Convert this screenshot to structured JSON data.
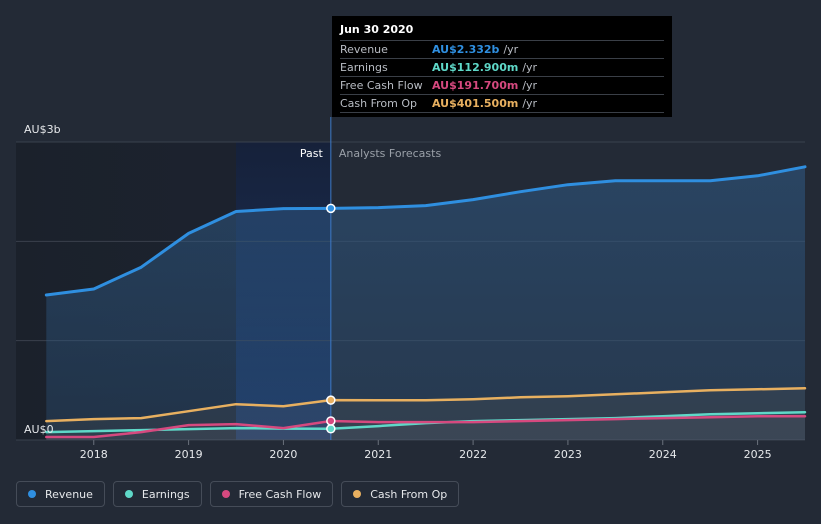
{
  "chart_data": {
    "type": "line",
    "title": "",
    "xlabel": "",
    "ylabel": "",
    "y_axis_top_label": "AU$3b",
    "y_axis_bottom_label": "AU$0",
    "ylim": [
      0,
      3.0
    ],
    "xlim": [
      2017.5,
      2025.5
    ],
    "x_ticks": [
      "2018",
      "2019",
      "2020",
      "2021",
      "2022",
      "2023",
      "2024",
      "2025"
    ],
    "past_label": "Past",
    "forecast_label": "Analysts Forecasts",
    "divider_x": 2020.5,
    "highlight_start_x": 2019.5,
    "series": [
      {
        "name": "Revenue",
        "color": "#2f8fe0",
        "area": true,
        "points": [
          [
            2017.5,
            1.46
          ],
          [
            2018.0,
            1.52
          ],
          [
            2018.5,
            1.74
          ],
          [
            2019.0,
            2.08
          ],
          [
            2019.5,
            2.3
          ],
          [
            2020.0,
            2.33
          ],
          [
            2020.5,
            2.332
          ],
          [
            2021.0,
            2.34
          ],
          [
            2021.5,
            2.36
          ],
          [
            2022.0,
            2.42
          ],
          [
            2022.5,
            2.5
          ],
          [
            2023.0,
            2.57
          ],
          [
            2023.5,
            2.61
          ],
          [
            2024.0,
            2.61
          ],
          [
            2024.5,
            2.61
          ],
          [
            2025.0,
            2.66
          ],
          [
            2025.5,
            2.75
          ]
        ]
      },
      {
        "name": "Earnings",
        "color": "#5fd8c8",
        "area": false,
        "points": [
          [
            2017.5,
            0.08
          ],
          [
            2018.0,
            0.09
          ],
          [
            2018.5,
            0.1
          ],
          [
            2019.0,
            0.11
          ],
          [
            2019.5,
            0.12
          ],
          [
            2020.0,
            0.115
          ],
          [
            2020.5,
            0.1129
          ],
          [
            2021.0,
            0.14
          ],
          [
            2021.5,
            0.17
          ],
          [
            2022.0,
            0.19
          ],
          [
            2022.5,
            0.2
          ],
          [
            2023.0,
            0.21
          ],
          [
            2023.5,
            0.22
          ],
          [
            2024.0,
            0.24
          ],
          [
            2024.5,
            0.26
          ],
          [
            2025.0,
            0.27
          ],
          [
            2025.5,
            0.28
          ]
        ]
      },
      {
        "name": "Free Cash Flow",
        "color": "#d6497f",
        "area": false,
        "points": [
          [
            2017.5,
            0.03
          ],
          [
            2018.0,
            0.03
          ],
          [
            2018.5,
            0.08
          ],
          [
            2019.0,
            0.15
          ],
          [
            2019.5,
            0.16
          ],
          [
            2020.0,
            0.12
          ],
          [
            2020.5,
            0.1917
          ],
          [
            2021.0,
            0.18
          ],
          [
            2021.5,
            0.18
          ],
          [
            2022.0,
            0.18
          ],
          [
            2022.5,
            0.19
          ],
          [
            2023.0,
            0.2
          ],
          [
            2023.5,
            0.21
          ],
          [
            2024.0,
            0.22
          ],
          [
            2024.5,
            0.23
          ],
          [
            2025.0,
            0.24
          ],
          [
            2025.5,
            0.24
          ]
        ]
      },
      {
        "name": "Cash From Op",
        "color": "#e8b060",
        "area": false,
        "points": [
          [
            2017.5,
            0.19
          ],
          [
            2018.0,
            0.21
          ],
          [
            2018.5,
            0.22
          ],
          [
            2019.0,
            0.29
          ],
          [
            2019.5,
            0.36
          ],
          [
            2020.0,
            0.34
          ],
          [
            2020.5,
            0.4015
          ],
          [
            2021.0,
            0.4
          ],
          [
            2021.5,
            0.4
          ],
          [
            2022.0,
            0.41
          ],
          [
            2022.5,
            0.43
          ],
          [
            2023.0,
            0.44
          ],
          [
            2023.5,
            0.46
          ],
          [
            2024.0,
            0.48
          ],
          [
            2024.5,
            0.5
          ],
          [
            2025.0,
            0.51
          ],
          [
            2025.5,
            0.52
          ]
        ]
      }
    ]
  },
  "tooltip": {
    "date": "Jun 30 2020",
    "rows": [
      {
        "name": "Revenue",
        "value": "AU$2.332b",
        "unit": "/yr",
        "color": "#2f8fe0"
      },
      {
        "name": "Earnings",
        "value": "AU$112.900m",
        "unit": "/yr",
        "color": "#5fd8c8"
      },
      {
        "name": "Free Cash Flow",
        "value": "AU$191.700m",
        "unit": "/yr",
        "color": "#d6497f"
      },
      {
        "name": "Cash From Op",
        "value": "AU$401.500m",
        "unit": "/yr",
        "color": "#e8b060"
      }
    ]
  },
  "legend": [
    {
      "label": "Revenue",
      "color": "#2f8fe0"
    },
    {
      "label": "Earnings",
      "color": "#5fd8c8"
    },
    {
      "label": "Free Cash Flow",
      "color": "#d6497f"
    },
    {
      "label": "Cash From Op",
      "color": "#e8b060"
    }
  ]
}
